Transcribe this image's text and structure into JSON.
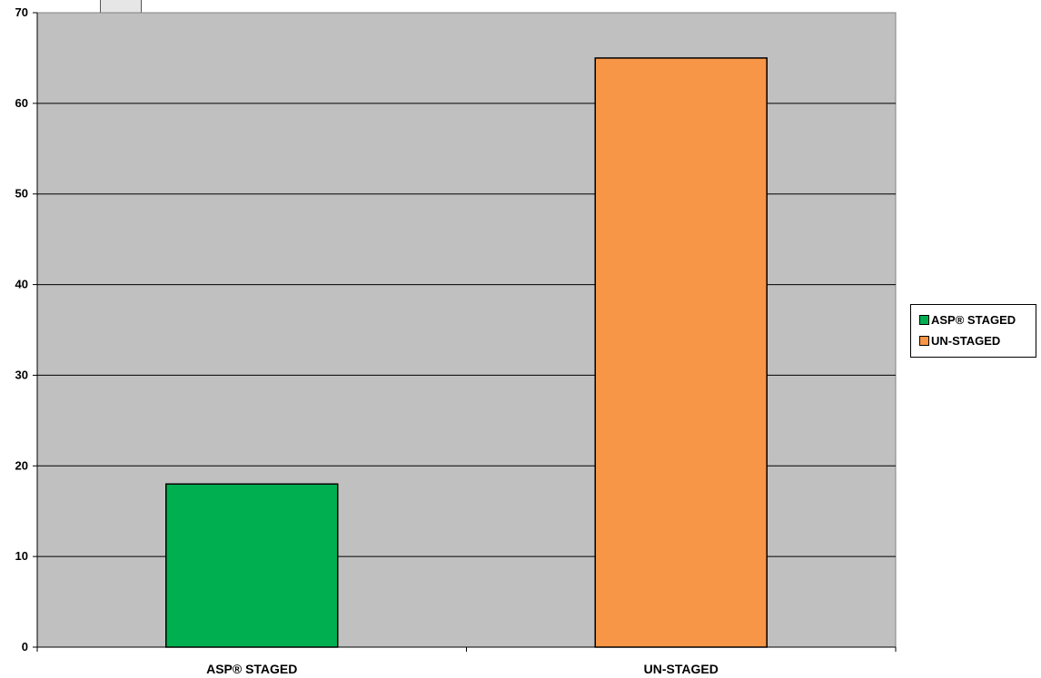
{
  "chart_data": {
    "type": "bar",
    "categories": [
      "ASP® STAGED",
      "UN-STAGED"
    ],
    "series": [
      {
        "name": "ASP® STAGED",
        "values": [
          18,
          null
        ],
        "color": "#00b050"
      },
      {
        "name": "UN-STAGED",
        "values": [
          null,
          65
        ],
        "color": "#f79646"
      }
    ],
    "title": "",
    "xlabel": "",
    "ylabel": "",
    "ylim": [
      0,
      70
    ],
    "yticks": [
      0,
      10,
      20,
      30,
      40,
      50,
      60,
      70
    ],
    "grid": true,
    "plot_background": "#c0c0c0",
    "legend_position": "right"
  },
  "legend": {
    "items": [
      {
        "label": "ASP® STAGED",
        "color": "#00b050"
      },
      {
        "label": "UN-STAGED",
        "color": "#f79646"
      }
    ]
  }
}
